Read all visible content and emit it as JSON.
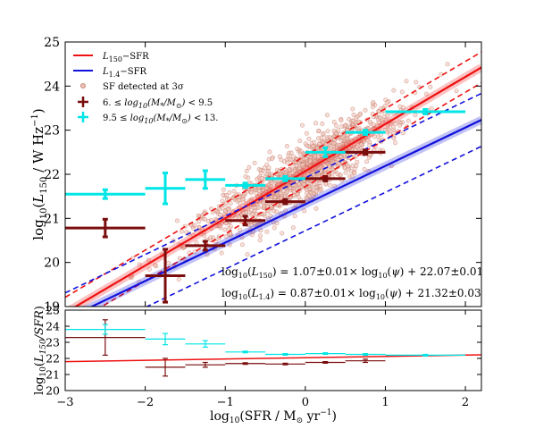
{
  "chart_data": [
    {
      "type": "scatter",
      "xlim": [
        -3,
        2.2
      ],
      "ylim": [
        19,
        25
      ],
      "ylabel": "log10(L150 / W Hz^-1)",
      "xlabel": "",
      "x_ticks": [
        -3,
        -2,
        -1,
        0,
        1,
        2
      ],
      "y_ticks": [
        19,
        20,
        21,
        22,
        23,
        24,
        25
      ],
      "y_tick_labels": [
        "19",
        "20",
        "21",
        "22",
        "23",
        "24",
        "25"
      ],
      "legend": {
        "placement": "top-left",
        "entries": [
          "L150−SFR",
          "L1.4−SFR",
          "SF detected at 3σ",
          "6. ≤ log10(M*/M⊙) < 9.5",
          "9.5 ≤ log10(M*/M⊙) < 13."
        ]
      },
      "relations": [
        {
          "name": "L150−SFR",
          "slope": 1.07,
          "intercept": 22.07,
          "scatter": 0.35,
          "color": "#ee1111"
        },
        {
          "name": "L1.4−SFR",
          "slope": 0.87,
          "intercept": 21.32,
          "scatter": 0.6,
          "color": "#1111dd"
        }
      ],
      "annotations": [
        "log10(L150) = 1.07±0.01× log10(ψ) + 22.07±0.01",
        "log10(L1.4) = 0.87±0.01× log10(ψ) + 21.32±0.03"
      ],
      "binned_series": [
        {
          "name": "6. ≤ log10(M*/M⊙) < 9.5",
          "color": "#7a0d0d",
          "points": [
            {
              "x": -2.5,
              "y": 20.78,
              "xerr": 0.5,
              "yerr": 0.2
            },
            {
              "x": -1.75,
              "y": 19.7,
              "xerr": 0.25,
              "yerr": 0.6
            },
            {
              "x": -1.25,
              "y": 20.38,
              "xerr": 0.25,
              "yerr": 0.1
            },
            {
              "x": -0.75,
              "y": 20.95,
              "xerr": 0.25,
              "yerr": 0.1
            },
            {
              "x": -0.25,
              "y": 21.38,
              "xerr": 0.25,
              "yerr": 0.05
            },
            {
              "x": 0.25,
              "y": 21.9,
              "xerr": 0.25,
              "yerr": 0.05
            },
            {
              "x": 0.75,
              "y": 22.5,
              "xerr": 0.25,
              "yerr": 0.05
            }
          ]
        },
        {
          "name": "9.5 ≤ log10(M*/M⊙) < 13.",
          "color": "#00e5e5",
          "points": [
            {
              "x": -2.5,
              "y": 21.55,
              "xerr": 0.5,
              "yerr": 0.1
            },
            {
              "x": -1.75,
              "y": 21.68,
              "xerr": 0.25,
              "yerr": 0.35
            },
            {
              "x": -1.25,
              "y": 21.88,
              "xerr": 0.25,
              "yerr": 0.2
            },
            {
              "x": -0.75,
              "y": 21.75,
              "xerr": 0.25,
              "yerr": 0.05
            },
            {
              "x": -0.25,
              "y": 21.9,
              "xerr": 0.25,
              "yerr": 0.05
            },
            {
              "x": 0.25,
              "y": 22.5,
              "xerr": 0.25,
              "yerr": 0.1
            },
            {
              "x": 0.75,
              "y": 22.95,
              "xerr": 0.25,
              "yerr": 0.05
            },
            {
              "x": 1.5,
              "y": 23.42,
              "xerr": 0.5,
              "yerr": 0.05
            }
          ]
        }
      ],
      "scatter_cloud": {
        "name": "SF detected at 3σ",
        "color": "#d59080"
      }
    },
    {
      "type": "scatter",
      "xlim": [
        -3,
        2.2
      ],
      "ylim": [
        20,
        25
      ],
      "ylabel": "log10(L150 / SFR)",
      "xlabel": "log10(SFR / M⊙ yr^-1)",
      "x_ticks": [
        -3,
        -2,
        -1,
        0,
        1,
        2
      ],
      "x_tick_labels": [
        "−3",
        "−2",
        "−1",
        "0",
        "1",
        "2"
      ],
      "y_ticks": [
        20,
        21,
        22,
        23,
        24,
        25
      ],
      "y_tick_labels": [
        "20",
        "21",
        "22",
        "23",
        "24",
        "25"
      ],
      "line": {
        "color": "#ee1111",
        "y_at_xmin": 21.8,
        "y_at_xmax": 22.22
      },
      "binned_series": [
        {
          "name": "6. ≤ log10(M*/M⊙) < 9.5",
          "color": "#7a0d0d",
          "points": [
            {
              "x": -2.5,
              "y": 23.3,
              "xerr": 0.5,
              "yerr": 1.1
            },
            {
              "x": -1.75,
              "y": 21.45,
              "xerr": 0.25,
              "yerr": 0.55
            },
            {
              "x": -1.25,
              "y": 21.6,
              "xerr": 0.25,
              "yerr": 0.15
            },
            {
              "x": -0.75,
              "y": 21.68,
              "xerr": 0.25,
              "yerr": 0.05
            },
            {
              "x": -0.25,
              "y": 21.65,
              "xerr": 0.25,
              "yerr": 0.05
            },
            {
              "x": 0.25,
              "y": 21.75,
              "xerr": 0.25,
              "yerr": 0.05
            },
            {
              "x": 0.75,
              "y": 21.85,
              "xerr": 0.25,
              "yerr": 0.1
            }
          ]
        },
        {
          "name": "9.5 ≤ log10(M*/M⊙) < 13.",
          "color": "#00e5e5",
          "points": [
            {
              "x": -2.5,
              "y": 23.8,
              "xerr": 0.5,
              "yerr": 0.3
            },
            {
              "x": -1.75,
              "y": 23.2,
              "xerr": 0.25,
              "yerr": 0.35
            },
            {
              "x": -1.25,
              "y": 22.9,
              "xerr": 0.25,
              "yerr": 0.2
            },
            {
              "x": -0.75,
              "y": 22.4,
              "xerr": 0.25,
              "yerr": 0.05
            },
            {
              "x": -0.25,
              "y": 22.25,
              "xerr": 0.25,
              "yerr": 0.05
            },
            {
              "x": 0.25,
              "y": 22.3,
              "xerr": 0.25,
              "yerr": 0.05
            },
            {
              "x": 0.75,
              "y": 22.25,
              "xerr": 0.25,
              "yerr": 0.05
            },
            {
              "x": 1.5,
              "y": 22.2,
              "xerr": 0.5,
              "yerr": 0.05
            }
          ]
        }
      ]
    }
  ]
}
